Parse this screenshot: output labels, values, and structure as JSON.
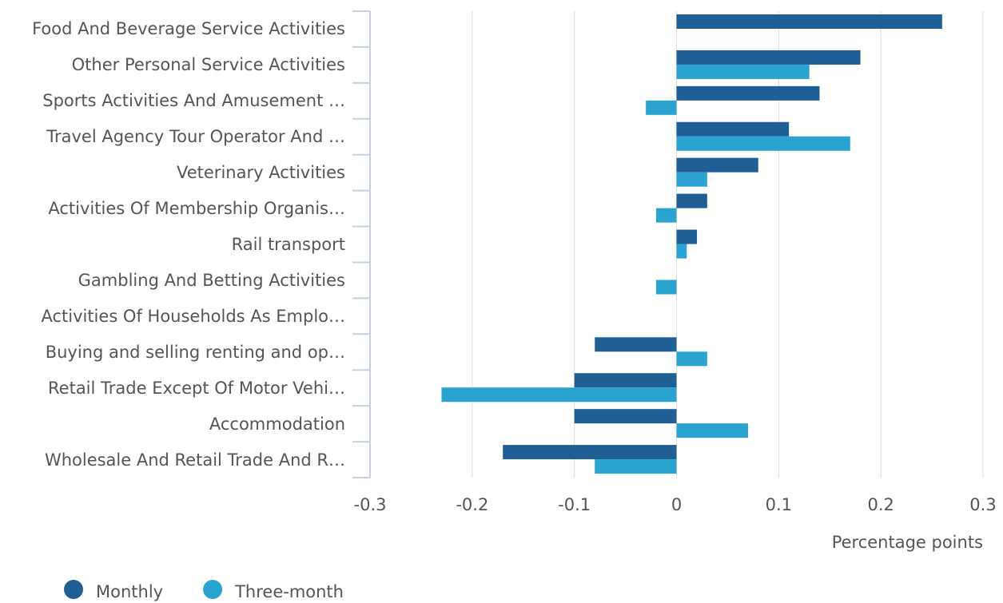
{
  "chart_data": {
    "type": "hbar",
    "categories": [
      "Food And Beverage Service Activities",
      "Other Personal Service Activities",
      "Sports Activities And Amusement …",
      "Travel Agency Tour Operator And …",
      "Veterinary Activities",
      "Activities Of Membership Organis…",
      "Rail transport",
      "Gambling And Betting Activities",
      "Activities Of Households As Emplo…",
      "Buying and selling renting and op…",
      "Retail Trade Except Of Motor Vehi…",
      "Accommodation",
      "Wholesale And Retail Trade And R…"
    ],
    "series": [
      {
        "name": "Monthly",
        "color": "#1f5f96",
        "values": [
          0.26,
          0.18,
          0.14,
          0.11,
          0.08,
          0.03,
          0.02,
          0,
          0,
          -0.08,
          -0.1,
          -0.1,
          -0.17
        ]
      },
      {
        "name": "Three-month",
        "color": "#2ba3d1",
        "values": [
          0,
          0.13,
          -0.03,
          0.17,
          0.03,
          -0.02,
          0.01,
          -0.02,
          0,
          0.03,
          -0.23,
          0.07,
          -0.08
        ]
      }
    ],
    "xlabel": "Percentage points",
    "xlim": [
      -0.3,
      0.3
    ],
    "xticks": [
      -0.3,
      -0.2,
      -0.1,
      0,
      0.1,
      0.2,
      0.3
    ],
    "grid": true,
    "legend": "bottom-left"
  }
}
